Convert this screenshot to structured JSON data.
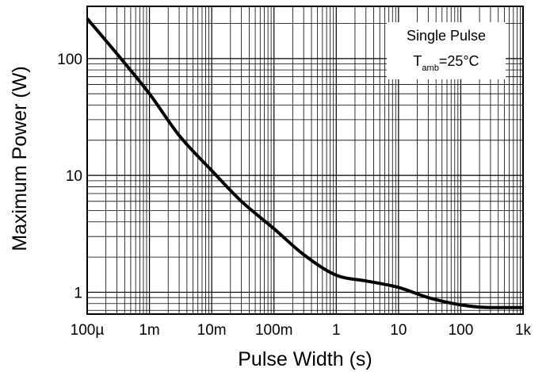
{
  "chart_data": {
    "type": "line",
    "title": "",
    "xlabel": "Pulse Width (s)",
    "ylabel": "Maximum Power (W)",
    "x_scale": "log",
    "y_scale": "log",
    "xlim": [
      0.0001,
      1000
    ],
    "ylim": [
      0.65,
      280
    ],
    "grid": true,
    "x_ticks": [
      {
        "value": 0.0001,
        "label": "100µ"
      },
      {
        "value": 0.001,
        "label": "1m"
      },
      {
        "value": 0.01,
        "label": "10m"
      },
      {
        "value": 0.1,
        "label": "100m"
      },
      {
        "value": 1,
        "label": "1"
      },
      {
        "value": 10,
        "label": "10"
      },
      {
        "value": 100,
        "label": "100"
      },
      {
        "value": 1000,
        "label": "1k"
      }
    ],
    "y_ticks": [
      {
        "value": 1,
        "label": "1"
      },
      {
        "value": 10,
        "label": "10"
      },
      {
        "value": 100,
        "label": "100"
      }
    ],
    "annotation": {
      "line1": "Single Pulse",
      "line2_prefix": "T",
      "line2_sub": "amb",
      "line2_suffix": "=25°C"
    },
    "series": [
      {
        "color": "#000000",
        "x": [
          0.0001,
          0.0003,
          0.001,
          0.003,
          0.01,
          0.03,
          0.1,
          0.3,
          1,
          3,
          10,
          30,
          100,
          300,
          1000
        ],
        "y": [
          220,
          110,
          50,
          22,
          11,
          6,
          3.5,
          2.1,
          1.4,
          1.25,
          1.1,
          0.9,
          0.78,
          0.74,
          0.74
        ]
      }
    ]
  }
}
